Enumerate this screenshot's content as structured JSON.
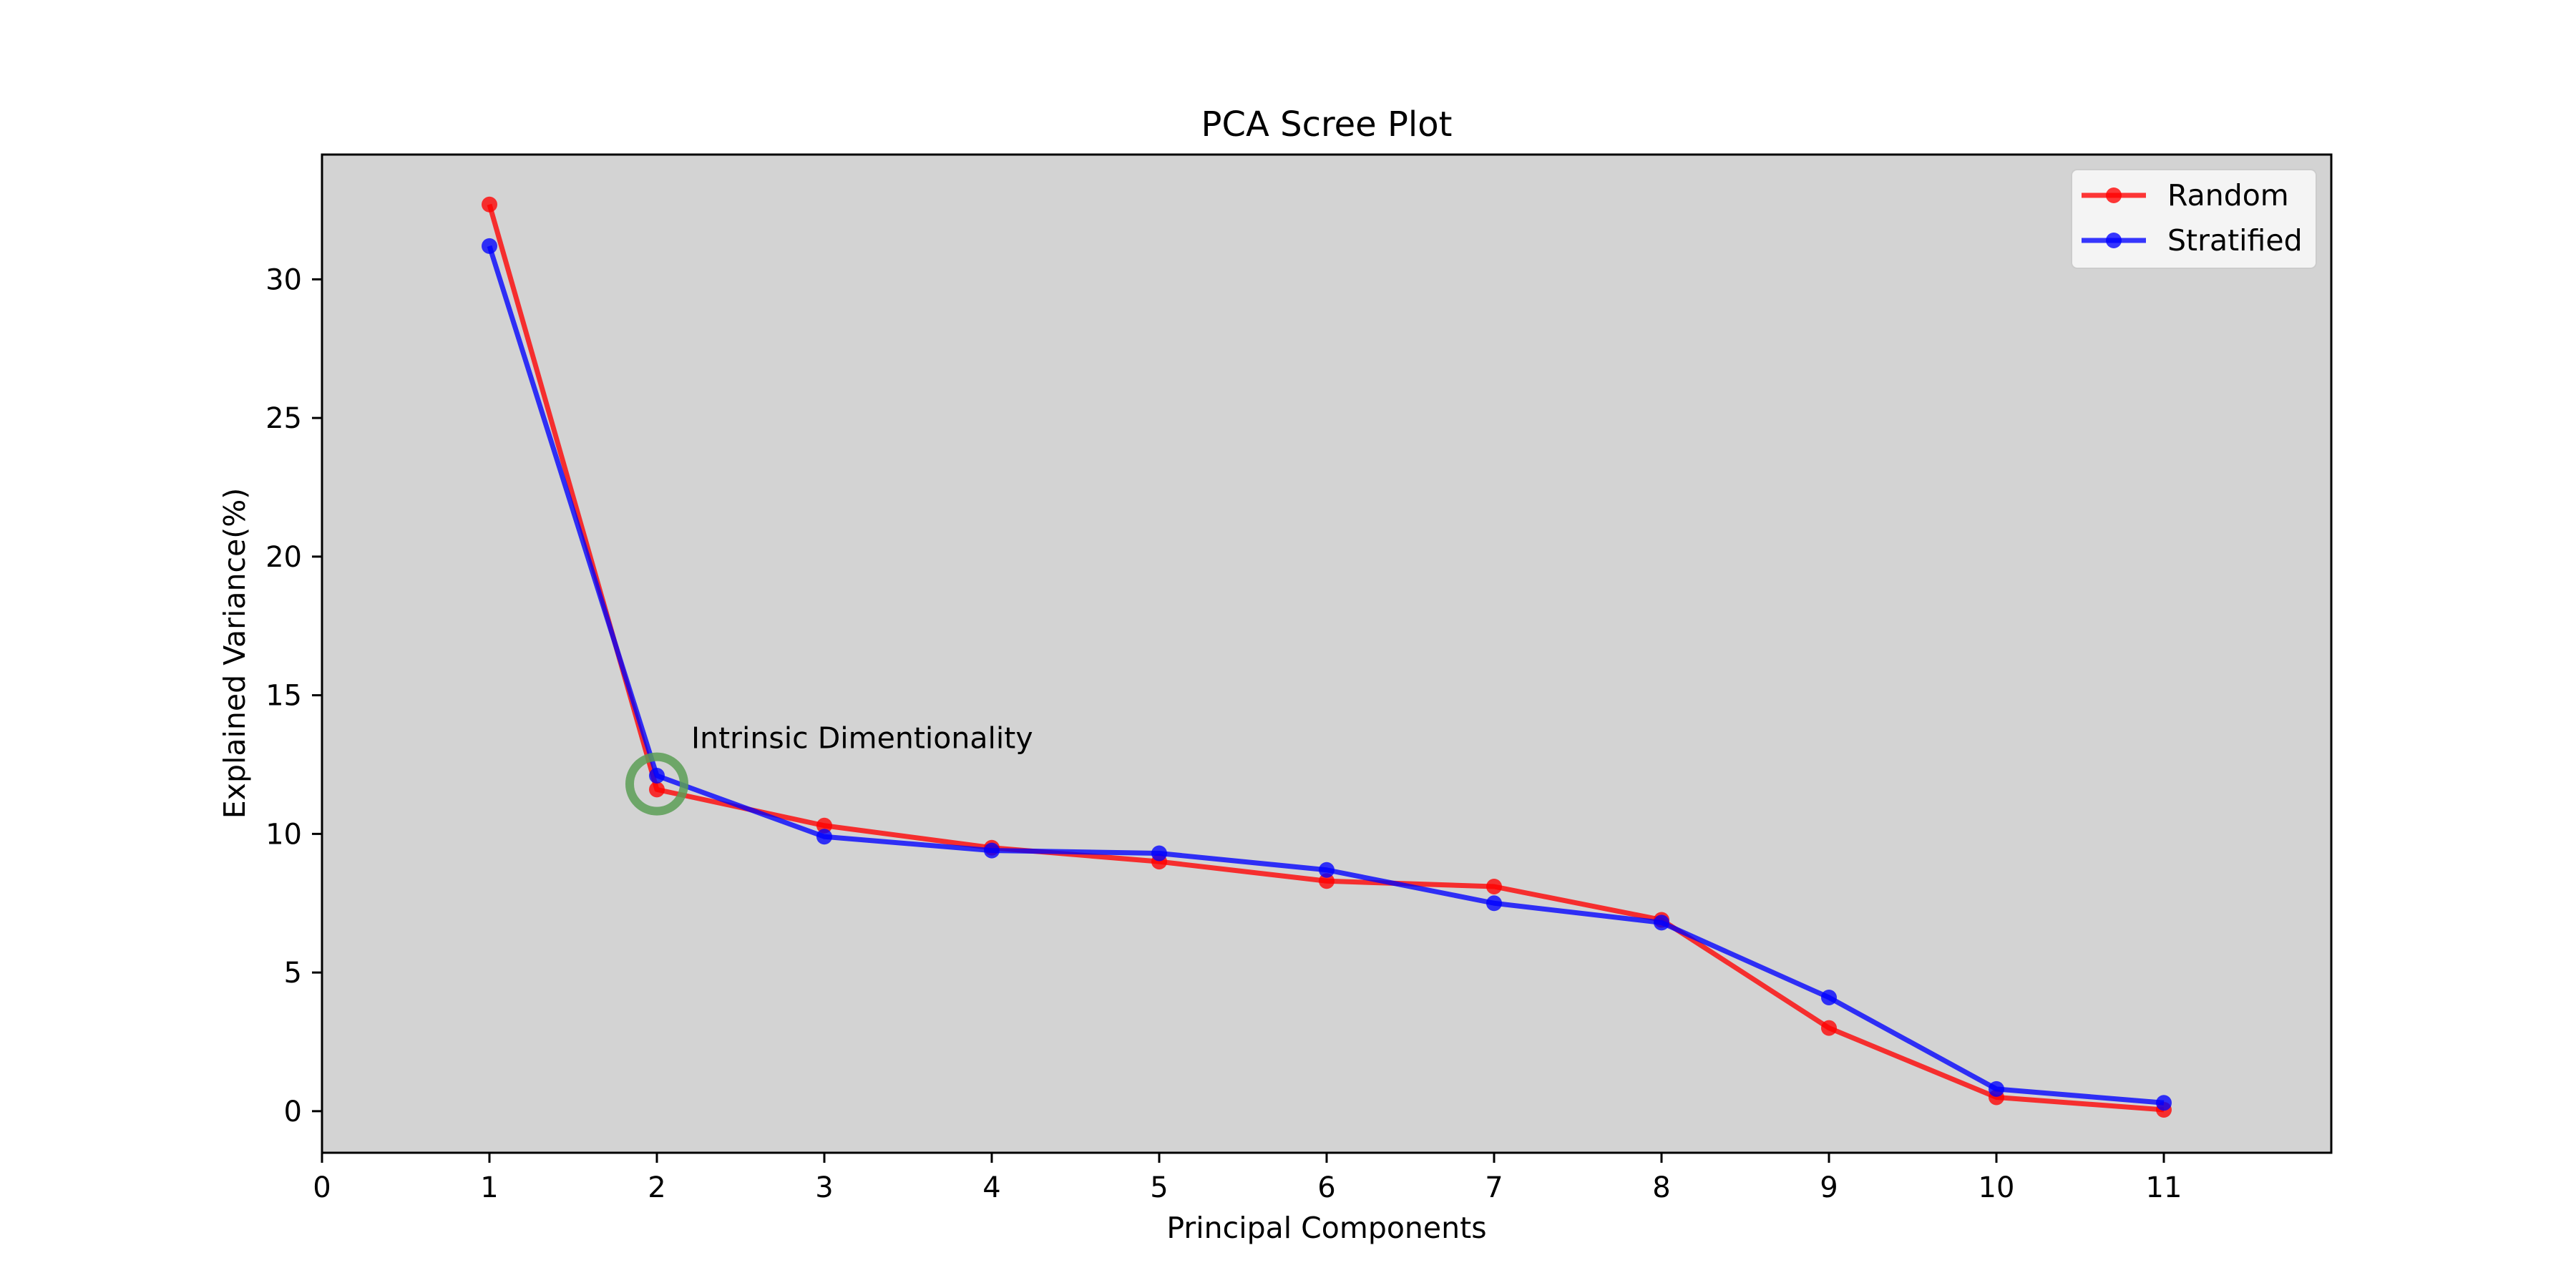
{
  "chart_data": {
    "type": "line",
    "title": "PCA Scree Plot",
    "xlabel": "Principal Components",
    "ylabel": "Explained Variance(%)",
    "xlim": [
      0,
      12
    ],
    "ylim": [
      -1.5,
      34.5
    ],
    "xticks": [
      0,
      1,
      2,
      3,
      4,
      5,
      6,
      7,
      8,
      9,
      10,
      11
    ],
    "yticks": [
      0,
      5,
      10,
      15,
      20,
      25,
      30
    ],
    "x": [
      1,
      2,
      3,
      4,
      5,
      6,
      7,
      8,
      9,
      10,
      11
    ],
    "series": [
      {
        "name": "Random",
        "color": "#ff0000",
        "values": [
          32.7,
          11.6,
          10.3,
          9.5,
          9.0,
          8.3,
          8.1,
          6.9,
          3.0,
          0.5,
          0.05
        ]
      },
      {
        "name": "Stratified",
        "color": "#0000ff",
        "values": [
          31.2,
          12.1,
          9.9,
          9.4,
          9.3,
          8.7,
          7.5,
          6.8,
          4.1,
          0.8,
          0.3
        ]
      }
    ],
    "annotation": {
      "text": "Intrinsic Dimentionality",
      "point": [
        2,
        11.8
      ],
      "marker_color": "#5a9e55"
    },
    "plot_background": "#d3d3d3",
    "grid": false,
    "legend_position": "upper right"
  }
}
